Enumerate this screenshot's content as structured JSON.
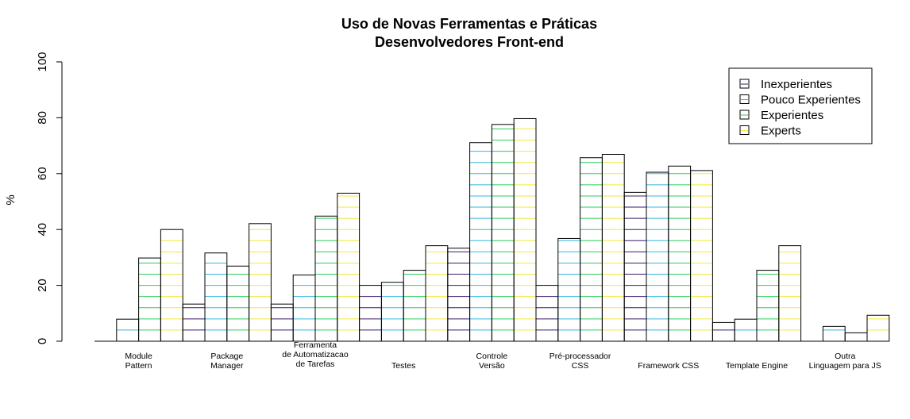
{
  "chart_data": {
    "type": "bar",
    "title": [
      "Uso de Novas Ferramentas e Práticas",
      "Desenvolvedores Front-end"
    ],
    "xlabel": "",
    "ylabel": "%",
    "ylim": [
      0,
      100
    ],
    "yticks": [
      0,
      20,
      40,
      60,
      80,
      100
    ],
    "legend_position": "top-right",
    "fill": "horizontal-lines",
    "categories": [
      [
        "Module",
        "Pattern"
      ],
      [
        "Package",
        "Manager"
      ],
      [
        "Ferramenta",
        "de Automatizacao",
        "de Tarefas"
      ],
      [
        "Testes"
      ],
      [
        "Controle",
        "Versão"
      ],
      [
        "Pré-processador",
        "CSS"
      ],
      [
        "Framework CSS"
      ],
      [
        "Template Engine"
      ],
      [
        "Outra",
        "Linguagem para JS"
      ]
    ],
    "series": [
      {
        "name": "Inexperientes",
        "color": "#3b1a6e",
        "values": [
          0,
          13.3,
          13.3,
          20,
          33.3,
          20,
          53.3,
          6.7,
          0
        ]
      },
      {
        "name": "Pouco Experientes",
        "color": "#35b7e0",
        "values": [
          7.9,
          31.6,
          23.7,
          21.1,
          71.1,
          36.8,
          60.5,
          7.9,
          5.3
        ]
      },
      {
        "name": "Experientes",
        "color": "#2ecc5e",
        "values": [
          29.8,
          26.9,
          44.8,
          25.4,
          77.6,
          65.7,
          62.7,
          25.4,
          3
        ]
      },
      {
        "name": "Experts",
        "color": "#f2ea3a",
        "values": [
          40,
          42.1,
          53,
          34.2,
          79.7,
          66.9,
          61.1,
          34.2,
          9.3
        ]
      }
    ]
  }
}
